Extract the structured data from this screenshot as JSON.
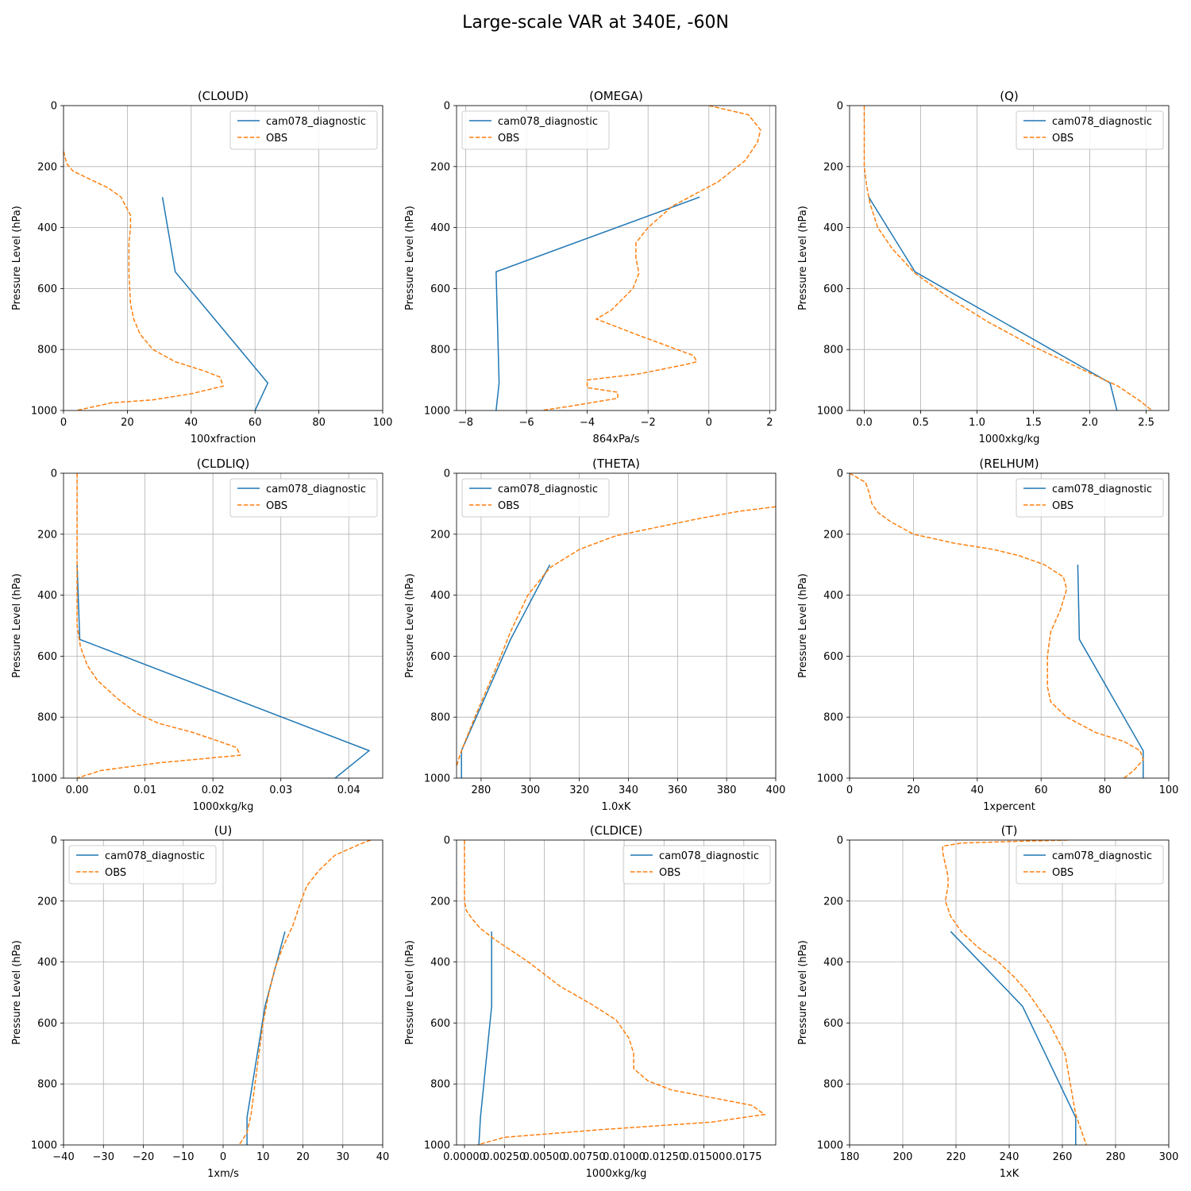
{
  "figure": {
    "title": "Large-scale VAR at 340E, -60N"
  },
  "colors": {
    "model": "#1f77b4",
    "obs": "#ff7f0e",
    "grid": "#b0b0b0"
  },
  "chart_data": [
    {
      "type": "line",
      "title": "(CLOUD)",
      "xlabel": "100xfraction",
      "ylabel": "Pressure Level (hPa)",
      "xlim": [
        0,
        100
      ],
      "ylim": [
        1000,
        0
      ],
      "grid": true,
      "legend": "top-right",
      "xticks": [
        0,
        20,
        40,
        60,
        80,
        100
      ],
      "xtick_labels": [
        "0",
        "20",
        "40",
        "60",
        "80",
        "100"
      ],
      "yticks": [
        0,
        200,
        400,
        600,
        800,
        1000
      ],
      "ytick_labels": [
        "0",
        "200",
        "400",
        "600",
        "800",
        "1000"
      ],
      "series": [
        {
          "name": "cam078_diagnostic",
          "style": "solid",
          "x": [
            31,
            35,
            64,
            60
          ],
          "y": [
            300,
            545,
            910,
            1000
          ]
        },
        {
          "name": "OBS",
          "style": "dashed",
          "x": [
            0,
            1,
            3,
            8,
            14,
            18,
            20,
            21,
            21,
            20.5,
            20.5,
            21,
            22,
            24,
            28,
            35,
            44,
            49,
            50,
            40,
            28,
            15,
            4
          ],
          "y": [
            150,
            190,
            215,
            240,
            270,
            300,
            340,
            360,
            400,
            450,
            550,
            650,
            700,
            750,
            800,
            840,
            870,
            890,
            920,
            945,
            965,
            975,
            1000
          ]
        }
      ]
    },
    {
      "type": "line",
      "title": "(OMEGA)",
      "xlabel": "864xPa/s",
      "ylabel": "Pressure Level (hPa)",
      "xlim": [
        -8.3,
        2.2
      ],
      "ylim": [
        1000,
        0
      ],
      "grid": true,
      "legend": "top-left",
      "xticks": [
        -8,
        -6,
        -4,
        -2,
        0,
        2
      ],
      "xtick_labels": [
        "−8",
        "−6",
        "−4",
        "−2",
        "0",
        "2"
      ],
      "yticks": [
        0,
        200,
        400,
        600,
        800,
        1000
      ],
      "ytick_labels": [
        "0",
        "200",
        "400",
        "600",
        "800",
        "1000"
      ],
      "series": [
        {
          "name": "cam078_diagnostic",
          "style": "solid",
          "x": [
            -0.3,
            -7.0,
            -6.9,
            -7.0
          ],
          "y": [
            300,
            545,
            910,
            1000
          ]
        },
        {
          "name": "OBS",
          "style": "dashed",
          "x": [
            0.0,
            1.3,
            1.7,
            1.6,
            1.2,
            0.3,
            -1.2,
            -2.0,
            -2.4,
            -2.4,
            -2.3,
            -2.5,
            -3.2,
            -3.7,
            -2.4,
            -0.5,
            -0.4,
            -0.8,
            -2.3,
            -4.0,
            -4.0,
            -3.0,
            -3.0,
            -4.5,
            -5.5
          ],
          "y": [
            0,
            30,
            80,
            120,
            180,
            250,
            330,
            400,
            450,
            500,
            550,
            600,
            670,
            700,
            750,
            820,
            840,
            850,
            880,
            900,
            925,
            940,
            960,
            985,
            1000
          ]
        }
      ]
    },
    {
      "type": "line",
      "title": "(Q)",
      "xlabel": "1000xkg/kg",
      "ylabel": "Pressure Level (hPa)",
      "xlim": [
        -0.13,
        2.7
      ],
      "ylim": [
        1000,
        0
      ],
      "grid": true,
      "legend": "top-right",
      "xticks": [
        0,
        0.5,
        1,
        1.5,
        2,
        2.5
      ],
      "xtick_labels": [
        "0.0",
        "0.5",
        "1.0",
        "1.5",
        "2.0",
        "2.5"
      ],
      "yticks": [
        0,
        200,
        400,
        600,
        800,
        1000
      ],
      "ytick_labels": [
        "0",
        "200",
        "400",
        "600",
        "800",
        "1000"
      ],
      "series": [
        {
          "name": "cam078_diagnostic",
          "style": "solid",
          "x": [
            0.04,
            0.45,
            2.18,
            2.24
          ],
          "y": [
            300,
            545,
            910,
            1000
          ]
        },
        {
          "name": "OBS",
          "style": "dashed",
          "x": [
            0.0,
            0.0,
            0.0,
            0.02,
            0.05,
            0.12,
            0.25,
            0.45,
            0.75,
            1.1,
            1.5,
            1.9,
            2.25,
            2.45,
            2.55
          ],
          "y": [
            0,
            100,
            200,
            260,
            320,
            400,
            470,
            550,
            630,
            710,
            790,
            860,
            920,
            970,
            1000
          ]
        }
      ]
    },
    {
      "type": "line",
      "title": "(CLDLIQ)",
      "xlabel": "1000xkg/kg",
      "ylabel": "Pressure Level (hPa)",
      "xlim": [
        -0.002,
        0.045
      ],
      "ylim": [
        1000,
        0
      ],
      "grid": true,
      "legend": "top-right",
      "xticks": [
        0,
        0.01,
        0.02,
        0.03,
        0.04
      ],
      "xtick_labels": [
        "0.00",
        "0.01",
        "0.02",
        "0.03",
        "0.04"
      ],
      "yticks": [
        0,
        200,
        400,
        600,
        800,
        1000
      ],
      "ytick_labels": [
        "0",
        "200",
        "400",
        "600",
        "800",
        "1000"
      ],
      "series": [
        {
          "name": "cam078_diagnostic",
          "style": "solid",
          "x": [
            0.0,
            0.0004,
            0.043,
            0.038
          ],
          "y": [
            300,
            545,
            910,
            1000
          ]
        },
        {
          "name": "OBS",
          "style": "dashed",
          "x": [
            0.0,
            0.0,
            0.0,
            0.0,
            0.0005,
            0.0015,
            0.003,
            0.006,
            0.009,
            0.012,
            0.017,
            0.021,
            0.0235,
            0.024,
            0.012,
            0.0035,
            0.0
          ],
          "y": [
            0,
            200,
            400,
            500,
            570,
            630,
            680,
            740,
            790,
            820,
            850,
            880,
            900,
            925,
            950,
            975,
            1000
          ]
        }
      ]
    },
    {
      "type": "line",
      "title": "(THETA)",
      "xlabel": "1.0xK",
      "ylabel": "Pressure Level (hPa)",
      "xlim": [
        270,
        400
      ],
      "ylim": [
        1000,
        0
      ],
      "grid": true,
      "legend": "top-left",
      "xticks": [
        280,
        300,
        320,
        340,
        360,
        380,
        400
      ],
      "xtick_labels": [
        "280",
        "300",
        "320",
        "340",
        "360",
        "380",
        "400"
      ],
      "yticks": [
        0,
        200,
        400,
        600,
        800,
        1000
      ],
      "ytick_labels": [
        "0",
        "200",
        "400",
        "600",
        "800",
        "1000"
      ],
      "series": [
        {
          "name": "cam078_diagnostic",
          "style": "solid",
          "x": [
            308,
            292,
            272,
            272
          ],
          "y": [
            300,
            545,
            910,
            1000
          ]
        },
        {
          "name": "OBS",
          "style": "dashed",
          "x": [
            400,
            385,
            368,
            350,
            335,
            320,
            308,
            299,
            292,
            286,
            278,
            272,
            270
          ],
          "y": [
            110,
            125,
            150,
            180,
            205,
            250,
            310,
            400,
            520,
            640,
            790,
            910,
            960
          ]
        }
      ]
    },
    {
      "type": "line",
      "title": "(RELHUM)",
      "xlabel": "1xpercent",
      "ylabel": "Pressure Level (hPa)",
      "xlim": [
        0,
        100
      ],
      "ylim": [
        1000,
        0
      ],
      "grid": true,
      "legend": "top-right",
      "xticks": [
        0,
        20,
        40,
        60,
        80,
        100
      ],
      "xtick_labels": [
        "0",
        "20",
        "40",
        "60",
        "80",
        "100"
      ],
      "yticks": [
        0,
        200,
        400,
        600,
        800,
        1000
      ],
      "ytick_labels": [
        "0",
        "200",
        "400",
        "600",
        "800",
        "1000"
      ],
      "series": [
        {
          "name": "cam078_diagnostic",
          "style": "solid",
          "x": [
            71.5,
            72,
            92,
            92
          ],
          "y": [
            300,
            545,
            910,
            1000
          ]
        },
        {
          "name": "OBS",
          "style": "dashed",
          "x": [
            0,
            5,
            6,
            7,
            9,
            13,
            20,
            33,
            45,
            53,
            61,
            67,
            68,
            66,
            63,
            62,
            62,
            63,
            68,
            77,
            86,
            91,
            92,
            89,
            86
          ],
          "y": [
            0,
            30,
            60,
            100,
            130,
            160,
            200,
            230,
            250,
            270,
            300,
            340,
            380,
            450,
            520,
            600,
            700,
            750,
            800,
            850,
            880,
            910,
            940,
            975,
            1000
          ]
        }
      ]
    },
    {
      "type": "line",
      "title": "(U)",
      "xlabel": "1xm/s",
      "ylabel": "Pressure Level (hPa)",
      "xlim": [
        -40,
        40
      ],
      "ylim": [
        1000,
        0
      ],
      "grid": true,
      "legend": "top-left",
      "xticks": [
        -40,
        -30,
        -20,
        -10,
        0,
        10,
        20,
        30,
        40
      ],
      "xtick_labels": [
        "−40",
        "−30",
        "−20",
        "−10",
        "0",
        "10",
        "20",
        "30",
        "40"
      ],
      "yticks": [
        0,
        200,
        400,
        600,
        800,
        1000
      ],
      "ytick_labels": [
        "0",
        "200",
        "400",
        "600",
        "800",
        "1000"
      ],
      "series": [
        {
          "name": "cam078_diagnostic",
          "style": "solid",
          "x": [
            15.5,
            10.5,
            6.0,
            6.0
          ],
          "y": [
            300,
            545,
            910,
            1000
          ]
        },
        {
          "name": "OBS",
          "style": "dashed",
          "x": [
            37,
            34,
            28,
            24,
            21,
            19.5,
            17.5,
            15,
            13,
            11.5,
            10,
            9,
            8,
            7,
            6,
            4
          ],
          "y": [
            0,
            15,
            50,
            100,
            150,
            200,
            280,
            350,
            420,
            500,
            600,
            700,
            800,
            900,
            960,
            1000
          ]
        }
      ]
    },
    {
      "type": "line",
      "title": "(CLDICE)",
      "xlabel": "1000xkg/kg",
      "ylabel": "Pressure Level (hPa)",
      "xlim": [
        -0.0005,
        0.0195
      ],
      "ylim": [
        1000,
        0
      ],
      "grid": true,
      "legend": "top-right",
      "xticks": [
        0,
        0.0025,
        0.005,
        0.0075,
        0.01,
        0.0125,
        0.015,
        0.0175
      ],
      "xtick_labels": [
        "0.00000",
        "0.00250",
        "0.00500",
        "0.00750",
        "0.01000",
        "0.01250",
        "0.01500",
        "0.0175"
      ],
      "yticks": [
        0,
        200,
        400,
        600,
        800,
        1000
      ],
      "ytick_labels": [
        "0",
        "200",
        "400",
        "600",
        "800",
        "1000"
      ],
      "series": [
        {
          "name": "cam078_diagnostic",
          "style": "solid",
          "x": [
            0.0017,
            0.0017,
            0.001,
            0.0009
          ],
          "y": [
            300,
            545,
            910,
            1000
          ]
        },
        {
          "name": "OBS",
          "style": "dashed",
          "x": [
            0.0,
            0.0,
            0.0001,
            0.0005,
            0.001,
            0.002,
            0.004,
            0.006,
            0.008,
            0.0095,
            0.0103,
            0.0106,
            0.0106,
            0.0115,
            0.013,
            0.016,
            0.018,
            0.0188,
            0.0155,
            0.0085,
            0.0025,
            0.0008
          ],
          "y": [
            0,
            200,
            230,
            260,
            290,
            330,
            400,
            480,
            540,
            590,
            650,
            700,
            750,
            790,
            820,
            850,
            870,
            900,
            925,
            950,
            975,
            1000
          ]
        }
      ]
    },
    {
      "type": "line",
      "title": "(T)",
      "xlabel": "1xK",
      "ylabel": "Pressure Level (hPa)",
      "xlim": [
        180,
        300
      ],
      "ylim": [
        1000,
        0
      ],
      "grid": true,
      "legend": "top-right",
      "xticks": [
        180,
        200,
        220,
        240,
        260,
        280,
        300
      ],
      "xtick_labels": [
        "180",
        "200",
        "220",
        "240",
        "260",
        "280",
        "300"
      ],
      "yticks": [
        0,
        200,
        400,
        600,
        800,
        1000
      ],
      "ytick_labels": [
        "0",
        "200",
        "400",
        "600",
        "800",
        "1000"
      ],
      "series": [
        {
          "name": "cam078_diagnostic",
          "style": "solid",
          "x": [
            218,
            245,
            265,
            265
          ],
          "y": [
            300,
            545,
            910,
            1000
          ]
        },
        {
          "name": "OBS",
          "style": "dashed",
          "x": [
            262,
            240,
            222,
            215,
            215,
            216,
            217,
            217,
            216,
            218,
            222,
            228,
            236,
            242,
            247,
            251,
            255,
            258,
            261,
            263,
            265,
            267,
            269
          ],
          "y": [
            0,
            5,
            10,
            20,
            40,
            80,
            120,
            150,
            200,
            250,
            300,
            350,
            400,
            450,
            500,
            550,
            600,
            650,
            700,
            800,
            900,
            950,
            1000
          ]
        }
      ]
    }
  ]
}
